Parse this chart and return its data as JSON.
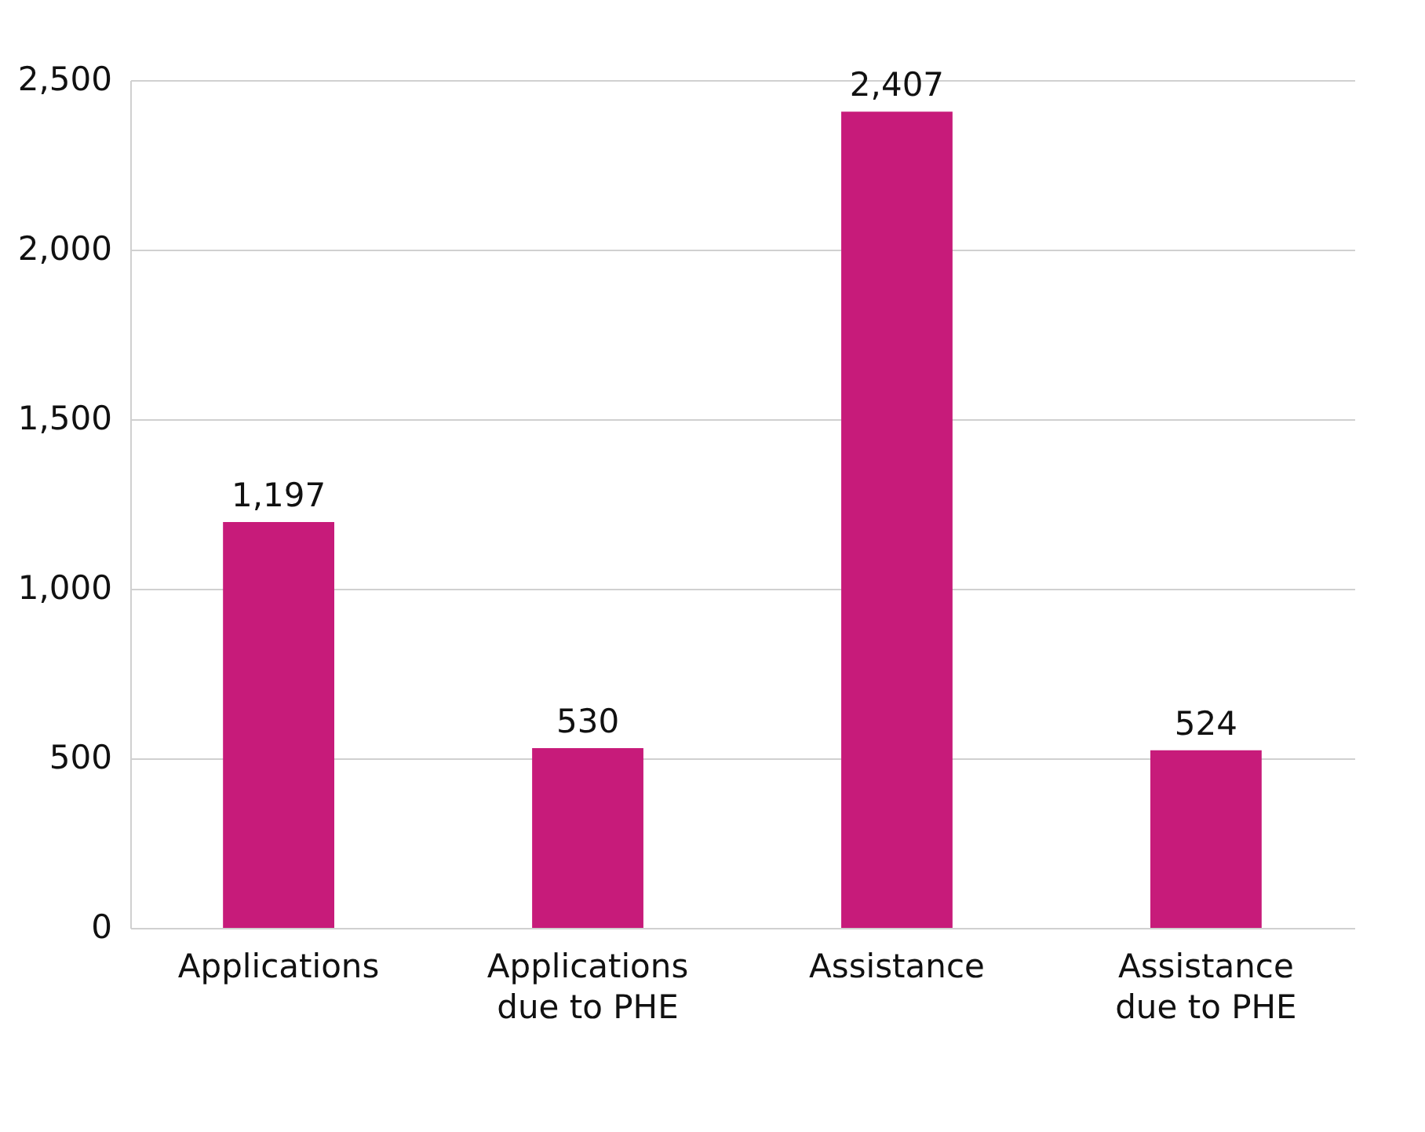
{
  "chart_data": {
    "type": "bar",
    "categories": [
      "Applications",
      "Applications due to PHE",
      "Assistance",
      "Assistance due to PHE"
    ],
    "values": [
      1197,
      530,
      2407,
      524
    ],
    "value_labels": [
      "1,197",
      "530",
      "2,407",
      "524"
    ],
    "color": "#c71b7a",
    "ylim": [
      0,
      2500
    ],
    "yticks": [
      0,
      500,
      {
        "value": 1000,
        "label": "1,000"
      },
      {
        "value": 1500,
        "label": "1,500"
      },
      {
        "value": 2000,
        "label": "2,000"
      },
      {
        "value": 2500,
        "label": "2,500"
      }
    ],
    "grid": "y"
  }
}
